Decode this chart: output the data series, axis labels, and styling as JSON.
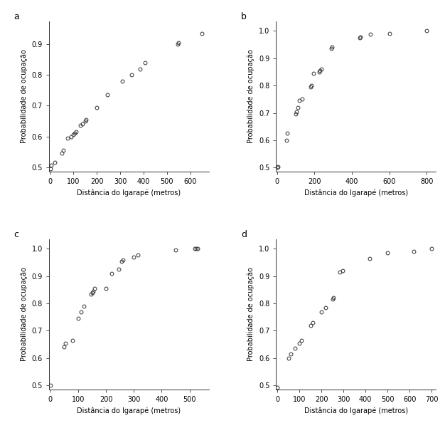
{
  "panel_a": {
    "label": "a",
    "x": [
      0,
      5,
      20,
      50,
      55,
      75,
      90,
      100,
      105,
      110,
      130,
      140,
      150,
      155,
      200,
      245,
      310,
      350,
      385,
      405,
      545,
      550,
      650
    ],
    "y": [
      0.495,
      0.505,
      0.515,
      0.545,
      0.555,
      0.595,
      0.6,
      0.605,
      0.61,
      0.615,
      0.635,
      0.64,
      0.65,
      0.655,
      0.695,
      0.735,
      0.78,
      0.8,
      0.82,
      0.84,
      0.9,
      0.905,
      0.935
    ],
    "xlabel": "Distância do Igarapé (metros)",
    "ylabel": "Probabilidade de ocupação",
    "xlim": [
      -5,
      680
    ],
    "ylim": [
      0.485,
      0.975
    ],
    "xticks": [
      0,
      100,
      200,
      300,
      400,
      500,
      600
    ],
    "yticks": [
      0.5,
      0.6,
      0.7,
      0.8,
      0.9
    ]
  },
  "panel_b": {
    "label": "b",
    "x": [
      0,
      5,
      50,
      55,
      100,
      105,
      110,
      120,
      135,
      180,
      185,
      195,
      225,
      230,
      235,
      290,
      295,
      440,
      445,
      500,
      600,
      800
    ],
    "y": [
      0.5,
      0.502,
      0.6,
      0.625,
      0.695,
      0.705,
      0.72,
      0.745,
      0.75,
      0.795,
      0.8,
      0.845,
      0.85,
      0.855,
      0.86,
      0.935,
      0.94,
      0.975,
      0.978,
      0.988,
      0.99,
      1.0
    ],
    "xlabel": "Distância do Igarapé (metros)",
    "ylabel": "Probabilidade de ocupação",
    "xlim": [
      -5,
      850
    ],
    "ylim": [
      0.485,
      1.035
    ],
    "xticks": [
      0,
      200,
      400,
      600,
      800
    ],
    "yticks": [
      0.5,
      0.6,
      0.7,
      0.8,
      0.9,
      1.0
    ]
  },
  "panel_c": {
    "label": "c",
    "x": [
      0,
      50,
      55,
      80,
      100,
      110,
      120,
      145,
      150,
      155,
      160,
      200,
      220,
      245,
      255,
      260,
      300,
      315,
      450,
      520,
      525,
      530
    ],
    "y": [
      0.5,
      0.64,
      0.655,
      0.665,
      0.745,
      0.77,
      0.79,
      0.835,
      0.84,
      0.845,
      0.855,
      0.855,
      0.91,
      0.925,
      0.955,
      0.96,
      0.97,
      0.978,
      0.995,
      1.0,
      1.0,
      1.0
    ],
    "xlabel": "Distância do Igarapé (metros)",
    "ylabel": "Probabilidade de ocupação",
    "xlim": [
      -5,
      570
    ],
    "ylim": [
      0.485,
      1.035
    ],
    "xticks": [
      0,
      100,
      200,
      300,
      400,
      500
    ],
    "yticks": [
      0.5,
      0.6,
      0.7,
      0.8,
      0.9,
      1.0
    ]
  },
  "panel_d": {
    "label": "d",
    "x": [
      0,
      50,
      60,
      80,
      100,
      110,
      150,
      160,
      200,
      220,
      250,
      255,
      285,
      295,
      420,
      500,
      620,
      700
    ],
    "y": [
      0.493,
      0.6,
      0.615,
      0.635,
      0.655,
      0.665,
      0.72,
      0.73,
      0.77,
      0.785,
      0.815,
      0.82,
      0.915,
      0.92,
      0.965,
      0.985,
      0.99,
      1.0
    ],
    "xlabel": "Distância do Igarapé (metros)",
    "ylabel": "Probabilidade de ocupação",
    "xlim": [
      -5,
      720
    ],
    "ylim": [
      0.485,
      1.035
    ],
    "xticks": [
      0,
      100,
      200,
      300,
      400,
      500,
      600,
      700
    ],
    "yticks": [
      0.5,
      0.6,
      0.7,
      0.8,
      0.9,
      1.0
    ]
  },
  "marker_style": "o",
  "marker_size": 3.5,
  "marker_color": "none",
  "marker_edge_color": "#333333",
  "marker_edge_width": 0.7,
  "label_fontsize": 7,
  "tick_fontsize": 7,
  "panel_label_fontsize": 9
}
